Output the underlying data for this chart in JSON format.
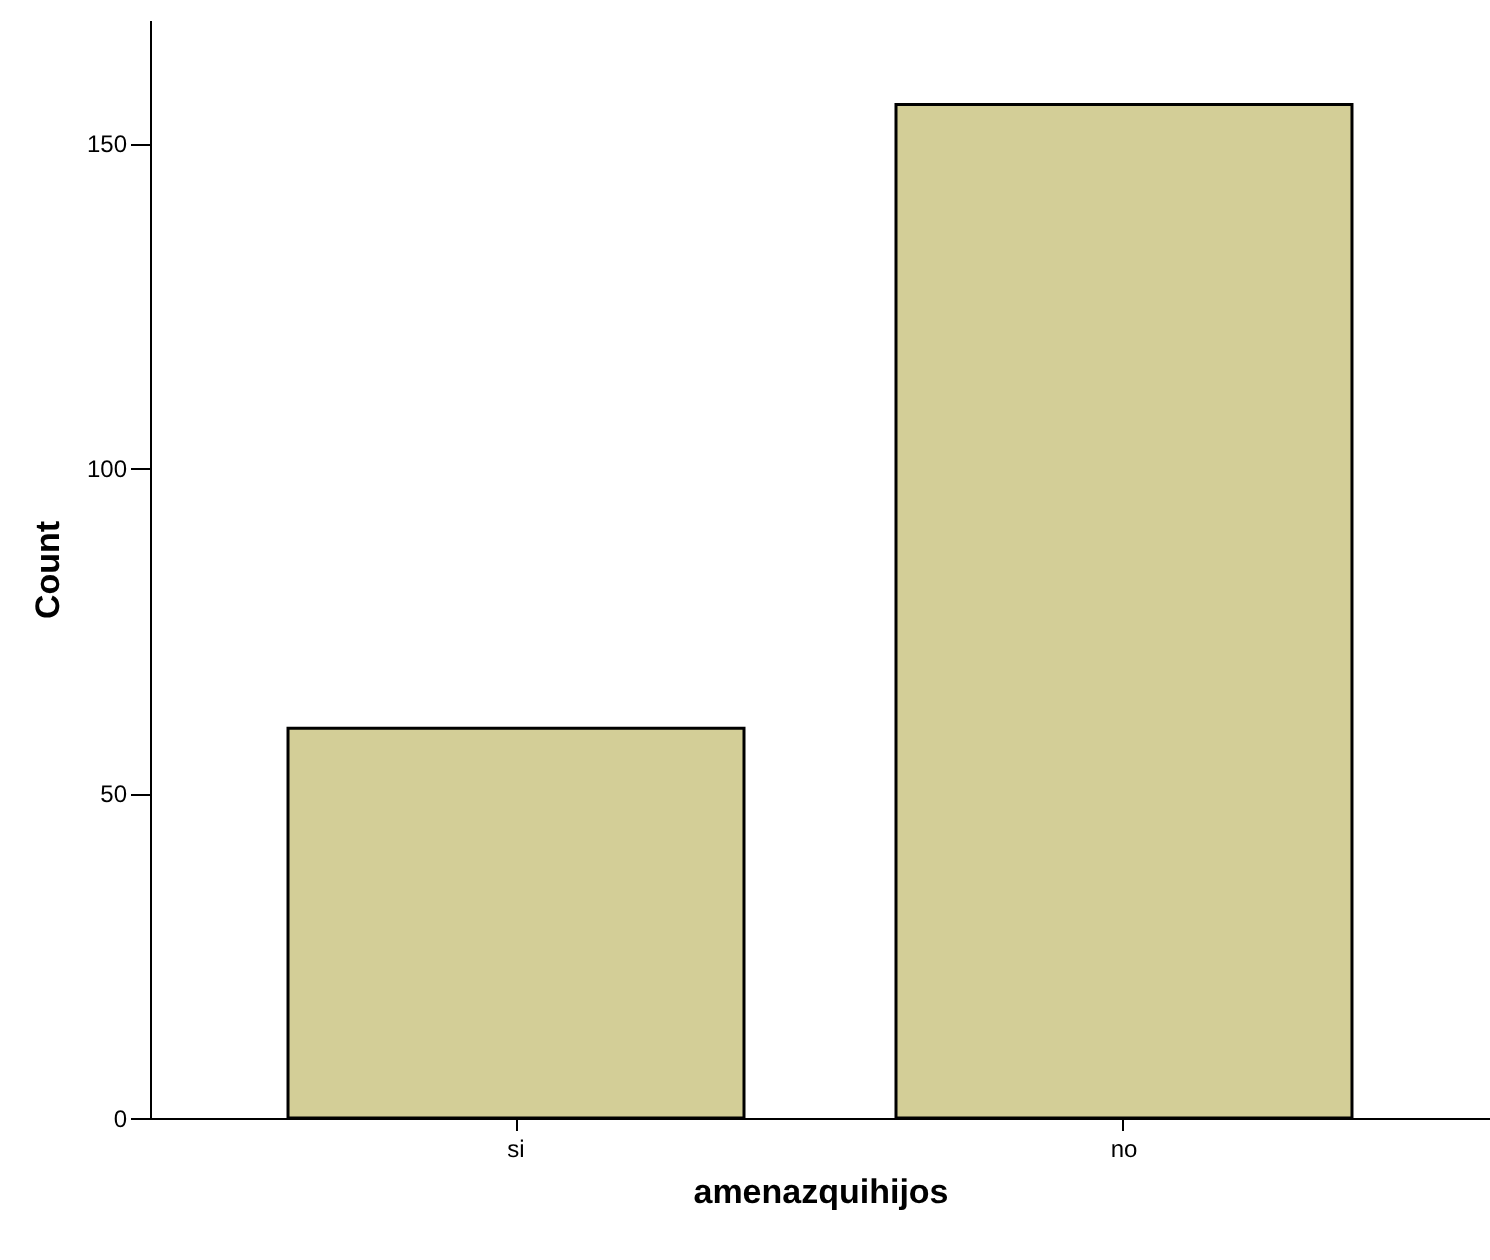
{
  "chart_data": {
    "type": "bar",
    "xlabel": "amenazquihijos",
    "ylabel": "Count",
    "categories": [
      "si",
      "no"
    ],
    "values": [
      60,
      156
    ],
    "color": "#d3ce97",
    "ylim": [
      0,
      169
    ],
    "yticks": [
      0,
      50,
      100,
      150
    ],
    "grid": false
  }
}
